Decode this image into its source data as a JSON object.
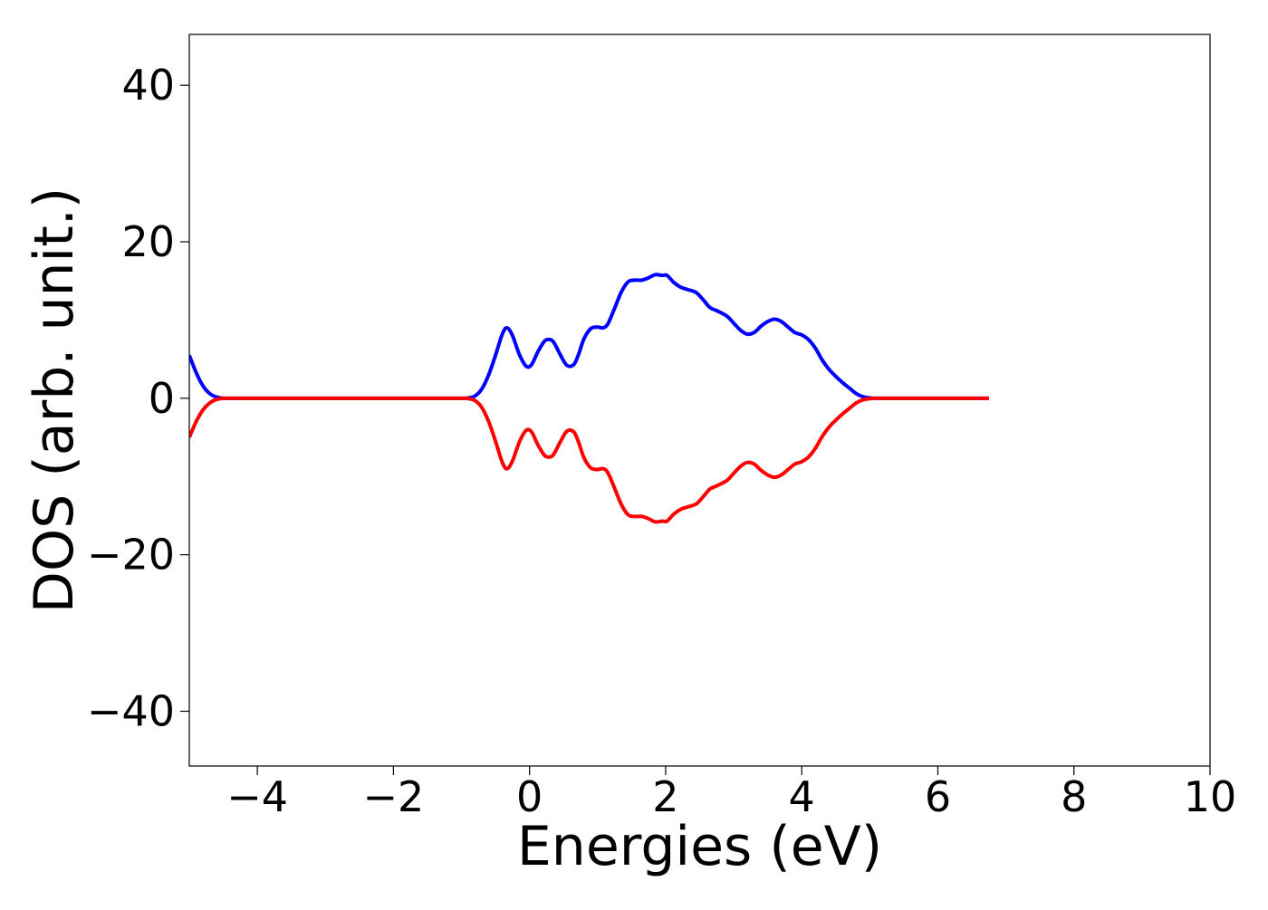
{
  "chart_data": {
    "type": "line",
    "xlabel": "Energies (eV)",
    "ylabel": "DOS (arb. unit.)",
    "xlim": [
      -5,
      10
    ],
    "ylim": [
      -47,
      46.5
    ],
    "xticks": [
      -4,
      -2,
      0,
      2,
      4,
      6,
      8,
      10
    ],
    "xtick_labels": [
      "−4",
      "−2",
      "0",
      "2",
      "4",
      "6",
      "8",
      "10"
    ],
    "yticks": [
      -40,
      -20,
      0,
      20,
      40
    ],
    "ytick_labels": [
      "−40",
      "−20",
      "0",
      "20",
      "40"
    ],
    "grid": false,
    "legend": "none",
    "series": [
      {
        "color": "#0000ff",
        "x": [
          -5.0,
          -4.9,
          -4.8,
          -4.7,
          -4.6,
          -4.5,
          -4.4,
          -4.0,
          -3.0,
          -2.0,
          -1.0,
          -0.9,
          -0.8,
          -0.7,
          -0.6,
          -0.5,
          -0.4,
          -0.33,
          -0.25,
          -0.15,
          -0.05,
          0.03,
          0.12,
          0.22,
          0.3,
          0.36,
          0.45,
          0.55,
          0.65,
          0.72,
          0.8,
          0.9,
          1.0,
          1.08,
          1.15,
          1.25,
          1.35,
          1.45,
          1.55,
          1.65,
          1.75,
          1.85,
          1.95,
          2.02,
          2.12,
          2.22,
          2.32,
          2.45,
          2.55,
          2.65,
          2.75,
          2.9,
          3.0,
          3.1,
          3.2,
          3.3,
          3.4,
          3.5,
          3.6,
          3.7,
          3.8,
          3.9,
          4.0,
          4.1,
          4.2,
          4.3,
          4.4,
          4.5,
          4.6,
          4.7,
          4.8,
          4.9,
          5.0,
          5.1,
          5.5,
          6.0,
          6.5,
          6.75
        ],
        "y": [
          5.5,
          3.3,
          1.6,
          0.6,
          0.15,
          0.0,
          0.0,
          0.0,
          0.0,
          0.0,
          0.0,
          0.05,
          0.3,
          1.2,
          3.0,
          5.5,
          8.2,
          9.0,
          8.0,
          5.6,
          4.1,
          4.3,
          5.9,
          7.3,
          7.5,
          7.1,
          5.6,
          4.2,
          4.3,
          5.6,
          7.6,
          8.9,
          9.1,
          9.0,
          9.5,
          11.5,
          13.6,
          14.9,
          15.1,
          15.1,
          15.4,
          15.8,
          15.7,
          15.7,
          14.8,
          14.2,
          13.9,
          13.5,
          12.6,
          11.6,
          11.2,
          10.5,
          9.6,
          8.7,
          8.2,
          8.4,
          9.2,
          9.8,
          10.1,
          9.8,
          9.1,
          8.4,
          8.1,
          7.5,
          6.4,
          4.9,
          3.7,
          2.8,
          2.0,
          1.3,
          0.6,
          0.2,
          0.05,
          0.0,
          0.0,
          0.0,
          0.0,
          0.0
        ]
      },
      {
        "color": "#ff0000",
        "x": [
          -5.0,
          -4.9,
          -4.8,
          -4.7,
          -4.6,
          -4.5,
          -4.4,
          -4.0,
          -3.0,
          -2.0,
          -1.0,
          -0.9,
          -0.8,
          -0.7,
          -0.6,
          -0.5,
          -0.4,
          -0.33,
          -0.25,
          -0.15,
          -0.05,
          0.03,
          0.12,
          0.22,
          0.3,
          0.36,
          0.45,
          0.55,
          0.65,
          0.72,
          0.8,
          0.9,
          1.0,
          1.08,
          1.15,
          1.25,
          1.35,
          1.45,
          1.55,
          1.65,
          1.75,
          1.85,
          1.95,
          2.02,
          2.12,
          2.22,
          2.32,
          2.45,
          2.55,
          2.65,
          2.75,
          2.9,
          3.0,
          3.1,
          3.2,
          3.3,
          3.4,
          3.5,
          3.6,
          3.7,
          3.8,
          3.9,
          4.0,
          4.1,
          4.2,
          4.3,
          4.4,
          4.5,
          4.6,
          4.7,
          4.8,
          4.9,
          5.0,
          5.1,
          5.5,
          6.0,
          6.5,
          6.75
        ],
        "y": [
          -5.0,
          -3.0,
          -1.5,
          -0.6,
          -0.15,
          0.0,
          0.0,
          0.0,
          0.0,
          0.0,
          0.0,
          -0.05,
          -0.3,
          -1.2,
          -3.0,
          -5.5,
          -8.2,
          -9.0,
          -8.0,
          -5.6,
          -4.1,
          -4.3,
          -5.9,
          -7.3,
          -7.5,
          -7.1,
          -5.6,
          -4.2,
          -4.3,
          -5.6,
          -7.6,
          -8.9,
          -9.1,
          -9.0,
          -9.5,
          -11.5,
          -13.6,
          -14.9,
          -15.1,
          -15.1,
          -15.4,
          -15.8,
          -15.7,
          -15.7,
          -14.8,
          -14.2,
          -13.9,
          -13.5,
          -12.6,
          -11.6,
          -11.2,
          -10.5,
          -9.6,
          -8.7,
          -8.2,
          -8.4,
          -9.2,
          -9.8,
          -10.1,
          -9.8,
          -9.1,
          -8.4,
          -8.1,
          -7.5,
          -6.4,
          -4.9,
          -3.7,
          -2.8,
          -2.0,
          -1.3,
          -0.6,
          -0.2,
          -0.05,
          0.0,
          0.0,
          0.0,
          0.0,
          0.0
        ]
      }
    ]
  }
}
